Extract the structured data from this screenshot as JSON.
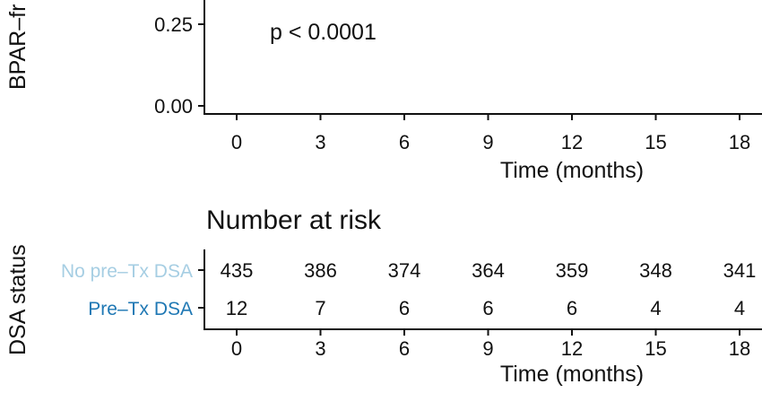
{
  "chart_data": [
    {
      "type": "line",
      "ylabel": "BPAR–fr",
      "xlabel": "Time (months)",
      "y_ticks": [
        "0.25",
        "0.00"
      ],
      "x_ticks": [
        "0",
        "3",
        "6",
        "9",
        "12",
        "15",
        "18"
      ],
      "annotation": "p < 0.0001",
      "series": []
    },
    {
      "type": "table",
      "title": "Number at risk",
      "ylabel": "DSA status",
      "xlabel": "Time (months)",
      "x_ticks": [
        "0",
        "3",
        "6",
        "9",
        "12",
        "15",
        "18"
      ],
      "rows": [
        {
          "name": "No pre–Tx DSA",
          "color": "#a6cee3",
          "values": [
            "435",
            "386",
            "374",
            "364",
            "359",
            "348",
            "341"
          ]
        },
        {
          "name": "Pre–Tx DSA",
          "color": "#1f78b4",
          "values": [
            "12",
            "7",
            "6",
            "6",
            "6",
            "4",
            "4"
          ]
        }
      ]
    }
  ]
}
